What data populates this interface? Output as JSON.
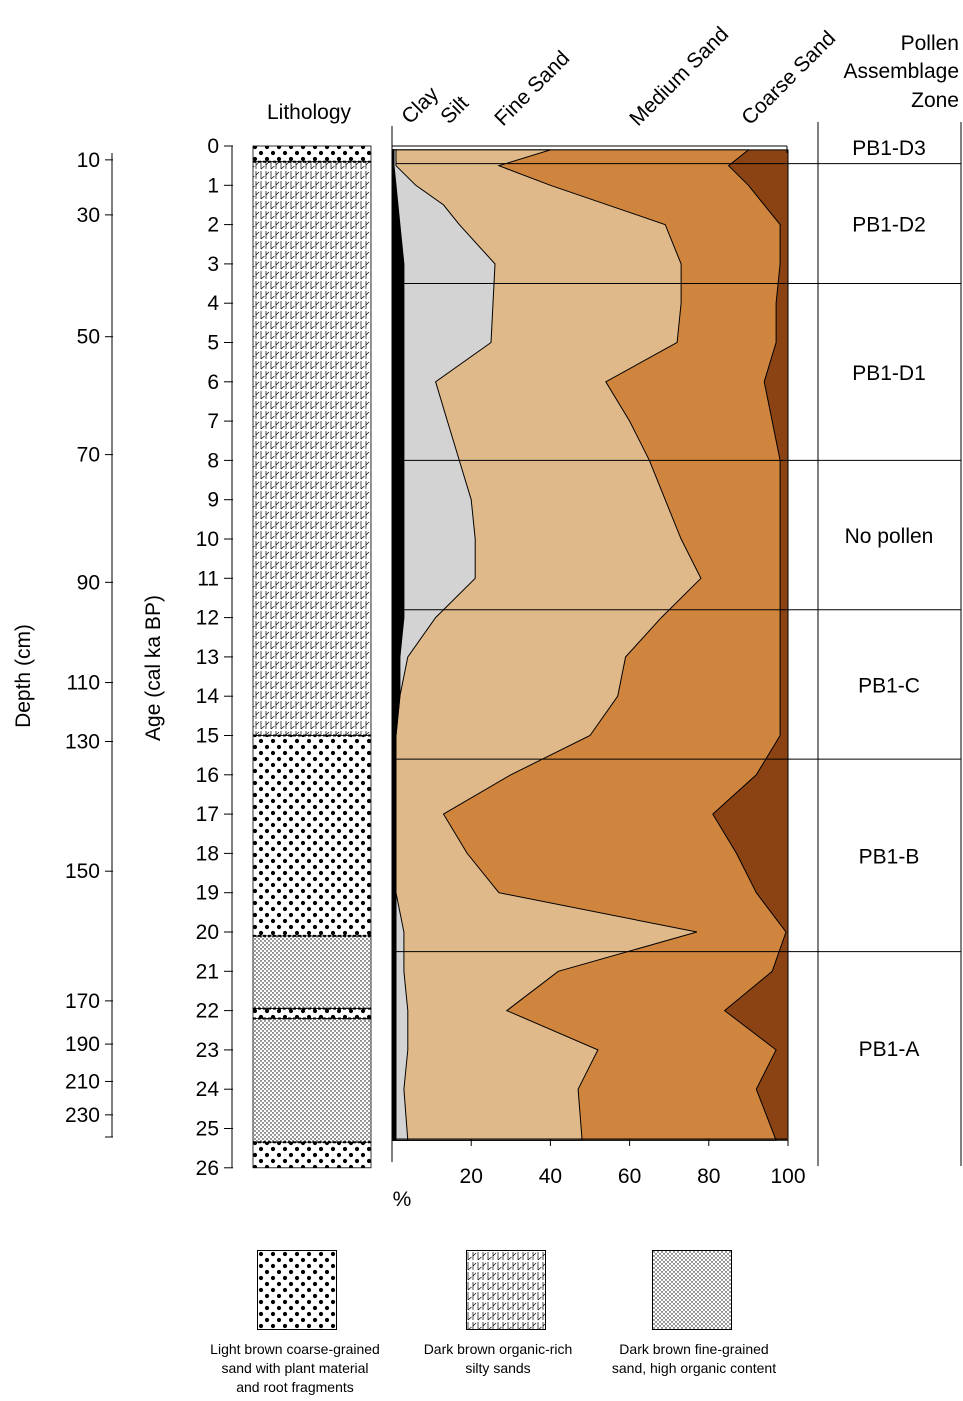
{
  "chart_data": {
    "type": "area",
    "stacked": true,
    "xlabel": "%",
    "xlim": [
      0,
      100
    ],
    "x_ticks": [
      20,
      40,
      60,
      80,
      100
    ],
    "age_label": "Age (cal ka BP)",
    "age_lim": [
      0,
      26
    ],
    "age_ticks": [
      0,
      1,
      2,
      3,
      4,
      5,
      6,
      7,
      8,
      9,
      10,
      11,
      12,
      13,
      14,
      15,
      16,
      17,
      18,
      19,
      20,
      21,
      22,
      23,
      24,
      25,
      26
    ],
    "depth_label": "Depth (cm)",
    "depth_ticks": [
      {
        "depth": 10,
        "age": 0.2
      },
      {
        "depth": 30,
        "age": 1.6
      },
      {
        "depth": 50,
        "age": 4.7
      },
      {
        "depth": 70,
        "age": 7.7
      },
      {
        "depth": 90,
        "age": 10.95
      },
      {
        "depth": 110,
        "age": 13.5
      },
      {
        "depth": 130,
        "age": 15.0
      },
      {
        "depth": 150,
        "age": 18.3
      },
      {
        "depth": 170,
        "age": 21.6
      },
      {
        "depth": 190,
        "age": 22.7
      },
      {
        "depth": 210,
        "age": 23.65
      },
      {
        "depth": 230,
        "age": 24.5
      }
    ],
    "series": [
      {
        "name": "Clay",
        "color": "#000000",
        "points": [
          [
            0.1,
            0.5
          ],
          [
            0.5,
            0.5
          ],
          [
            1,
            1
          ],
          [
            2,
            2
          ],
          [
            3,
            3
          ],
          [
            4,
            3
          ],
          [
            5,
            3
          ],
          [
            6,
            3
          ],
          [
            7,
            3
          ],
          [
            8,
            3
          ],
          [
            9,
            3
          ],
          [
            10,
            3
          ],
          [
            11,
            3
          ],
          [
            12,
            3
          ],
          [
            13,
            2
          ],
          [
            14,
            2
          ],
          [
            15,
            1
          ],
          [
            16,
            1
          ],
          [
            17,
            1
          ],
          [
            18,
            1
          ],
          [
            19,
            1
          ],
          [
            20,
            1
          ],
          [
            21,
            1
          ],
          [
            22,
            1
          ],
          [
            23,
            1
          ],
          [
            24,
            1
          ],
          [
            25.3,
            1
          ]
        ]
      },
      {
        "name": "Silt",
        "color": "#d3d3d3",
        "points": [
          [
            0.1,
            1
          ],
          [
            0.5,
            1
          ],
          [
            1,
            6
          ],
          [
            1.5,
            13
          ],
          [
            2,
            17
          ],
          [
            3,
            26
          ],
          [
            4,
            25.5
          ],
          [
            5,
            25
          ],
          [
            6,
            11
          ],
          [
            7,
            14
          ],
          [
            8,
            17
          ],
          [
            9,
            20
          ],
          [
            10,
            21
          ],
          [
            11,
            21
          ],
          [
            12,
            11
          ],
          [
            13,
            4
          ],
          [
            14,
            2
          ],
          [
            15,
            1
          ],
          [
            16,
            1
          ],
          [
            17,
            1
          ],
          [
            18,
            1
          ],
          [
            19,
            1
          ],
          [
            20,
            3
          ],
          [
            21,
            3
          ],
          [
            22,
            4
          ],
          [
            23,
            4
          ],
          [
            24,
            3
          ],
          [
            25.3,
            4
          ]
        ]
      },
      {
        "name": "Fine Sand",
        "color": "#e0b98a",
        "points": [
          [
            0.1,
            40
          ],
          [
            0.5,
            27
          ],
          [
            1,
            40
          ],
          [
            2,
            69
          ],
          [
            3,
            73
          ],
          [
            4,
            73
          ],
          [
            5,
            72
          ],
          [
            6,
            54
          ],
          [
            7,
            60
          ],
          [
            8,
            65
          ],
          [
            9,
            69
          ],
          [
            10,
            73
          ],
          [
            11,
            78
          ],
          [
            12,
            68
          ],
          [
            13,
            59
          ],
          [
            14,
            57
          ],
          [
            15,
            50
          ],
          [
            16,
            30
          ],
          [
            17,
            13
          ],
          [
            18,
            19
          ],
          [
            19,
            27
          ],
          [
            20,
            77
          ],
          [
            21,
            42
          ],
          [
            22,
            29
          ],
          [
            23,
            52
          ],
          [
            24,
            47
          ],
          [
            25.3,
            48
          ]
        ]
      },
      {
        "name": "Medium Sand",
        "color": "#cf853e",
        "points": [
          [
            0.1,
            90
          ],
          [
            0.5,
            85
          ],
          [
            1,
            90
          ],
          [
            2,
            98
          ],
          [
            3,
            98
          ],
          [
            4,
            97
          ],
          [
            5,
            97
          ],
          [
            6,
            94
          ],
          [
            7,
            96
          ],
          [
            8,
            98
          ],
          [
            9,
            98
          ],
          [
            10,
            98
          ],
          [
            11,
            98
          ],
          [
            12,
            98
          ],
          [
            13,
            98
          ],
          [
            14,
            98
          ],
          [
            15,
            98
          ],
          [
            16,
            92
          ],
          [
            17,
            81
          ],
          [
            18,
            87
          ],
          [
            19,
            92
          ],
          [
            20,
            99.5
          ],
          [
            21,
            96
          ],
          [
            22,
            84
          ],
          [
            23,
            97
          ],
          [
            24,
            92
          ],
          [
            25.3,
            97
          ]
        ]
      },
      {
        "name": "Coarse Sand",
        "color": "#8b4313",
        "points": [
          [
            0.1,
            100
          ],
          [
            25.3,
            100
          ]
        ]
      }
    ],
    "pollen_zone_header": [
      "Pollen",
      "Assemblage",
      "Zone"
    ],
    "pollen_zones": [
      {
        "label": "PB1-D3",
        "top": 0,
        "bottom": 0.45
      },
      {
        "label": "PB1-D2",
        "top": 0.45,
        "bottom": 3.5
      },
      {
        "label": "PB1-D1",
        "top": 3.5,
        "bottom": 8.0
      },
      {
        "label": "No pollen",
        "top": 8.0,
        "bottom": 11.8
      },
      {
        "label": "PB1-C",
        "top": 11.8,
        "bottom": 15.6
      },
      {
        "label": "PB1-B",
        "top": 15.6,
        "bottom": 20.5
      },
      {
        "label": "PB1-A",
        "top": 20.5,
        "bottom": 26
      }
    ],
    "lithology_label": "Lithology",
    "lithology_units": [
      {
        "pattern": "coarse",
        "top": 0,
        "bottom": 0.4
      },
      {
        "pattern": "silty",
        "top": 0.4,
        "bottom": 15.0
      },
      {
        "pattern": "coarse",
        "top": 15.0,
        "bottom": 20.1
      },
      {
        "pattern": "fine",
        "top": 20.1,
        "bottom": 21.95
      },
      {
        "pattern": "coarse",
        "top": 21.95,
        "bottom": 22.2
      },
      {
        "pattern": "fine",
        "top": 22.2,
        "bottom": 25.35
      },
      {
        "pattern": "coarse",
        "top": 25.35,
        "bottom": 26
      }
    ],
    "legend": [
      {
        "pattern": "coarse",
        "label_lines": [
          "Light brown coarse-grained",
          "sand with plant material",
          "and root fragments"
        ]
      },
      {
        "pattern": "silty",
        "label_lines": [
          "Dark brown organic-rich",
          "silty sands"
        ]
      },
      {
        "pattern": "fine",
        "label_lines": [
          "Dark brown fine-grained",
          "sand, high organic content"
        ]
      }
    ]
  }
}
